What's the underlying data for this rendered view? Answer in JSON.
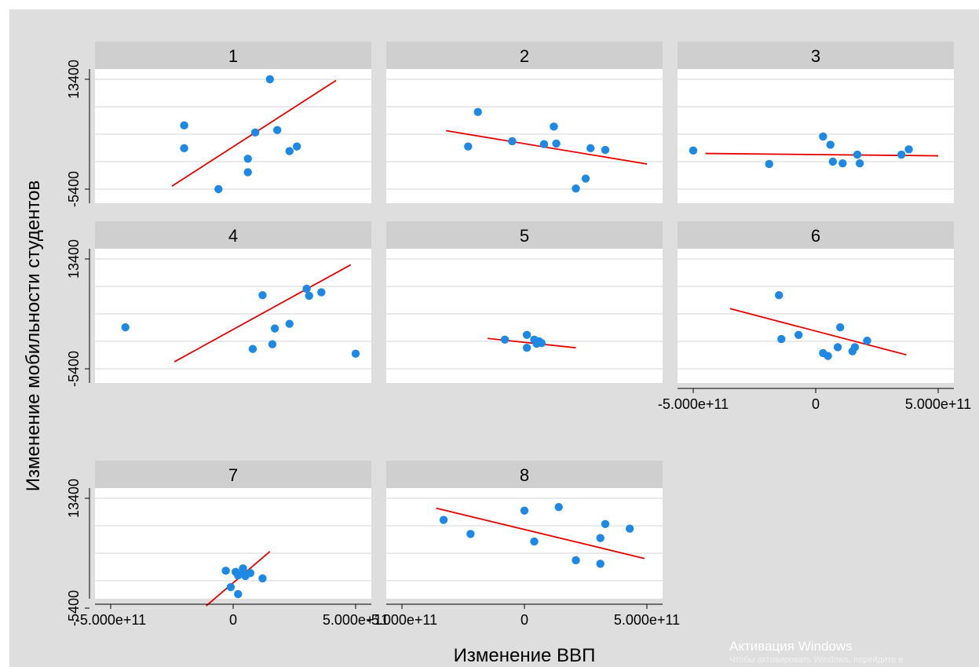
{
  "chart_data": {
    "type": "scatter",
    "ylabel": "Изменение мобильности студентов",
    "xlabel": "Изменение ВВП",
    "x_ticks": [
      -500000000000,
      0,
      500000000000
    ],
    "x_tick_labels": [
      "-5.000e+11",
      "0",
      "5.000e+11"
    ],
    "y_ticks": [
      -5400,
      13400
    ],
    "y_tick_labels": [
      "-5400",
      "13400"
    ],
    "xlim": [
      -600000000000,
      550000000000
    ],
    "ylim": [
      -7200,
      13700
    ],
    "point_color": "#1e88e5",
    "fit_color": "#e60000",
    "panels": [
      {
        "label": "1",
        "points": [
          [
            -200000000000.0,
            5500
          ],
          [
            -200000000000.0,
            1600
          ],
          [
            -60000000000.0,
            -5400
          ],
          [
            60000000000.0,
            -200
          ],
          [
            60000000000.0,
            -2500
          ],
          [
            90000000000.0,
            4300
          ],
          [
            150000000000.0,
            13400
          ],
          [
            180000000000.0,
            4700
          ],
          [
            230000000000.0,
            1100
          ],
          [
            260000000000.0,
            1900
          ]
        ],
        "fit": [
          [
            -250000000000.0,
            -4900
          ],
          [
            420000000000.0,
            13200
          ]
        ]
      },
      {
        "label": "2",
        "points": [
          [
            -230000000000.0,
            1900
          ],
          [
            -190000000000.0,
            7800
          ],
          [
            -50000000000.0,
            2800
          ],
          [
            80000000000.0,
            2300
          ],
          [
            120000000000.0,
            5300
          ],
          [
            130000000000.0,
            2400
          ],
          [
            210000000000.0,
            -5300
          ],
          [
            250000000000.0,
            -3600
          ],
          [
            270000000000.0,
            1600
          ],
          [
            330000000000.0,
            1300
          ]
        ],
        "fit": [
          [
            -320000000000.0,
            4600
          ],
          [
            500000000000.0,
            -1100
          ]
        ]
      },
      {
        "label": "3",
        "points": [
          [
            -500000000000.0,
            1200
          ],
          [
            -190000000000.0,
            -1100
          ],
          [
            30000000000.0,
            3600
          ],
          [
            60000000000.0,
            2200
          ],
          [
            70000000000.0,
            -700
          ],
          [
            110000000000.0,
            -1000
          ],
          [
            170000000000.0,
            500
          ],
          [
            180000000000.0,
            -1000
          ],
          [
            350000000000.0,
            500
          ],
          [
            380000000000.0,
            1400
          ]
        ],
        "fit": [
          [
            -450000000000.0,
            700
          ],
          [
            500000000000.0,
            300
          ]
        ]
      },
      {
        "label": "4",
        "points": [
          [
            -440000000000.0,
            1700
          ],
          [
            80000000000.0,
            -2000
          ],
          [
            120000000000.0,
            7200
          ],
          [
            160000000000.0,
            -1200
          ],
          [
            170000000000.0,
            1500
          ],
          [
            230000000000.0,
            2300
          ],
          [
            300000000000.0,
            8300
          ],
          [
            310000000000.0,
            7100
          ],
          [
            360000000000.0,
            7700
          ],
          [
            500000000000.0,
            -2800
          ]
        ],
        "fit": [
          [
            -240000000000.0,
            -4200
          ],
          [
            480000000000.0,
            12400
          ]
        ]
      },
      {
        "label": "5",
        "points": [
          [
            -80000000000.0,
            -400
          ],
          [
            10000000000.0,
            400
          ],
          [
            10000000000.0,
            -1800
          ],
          [
            40000000000.0,
            -400
          ],
          [
            50000000000.0,
            -1100
          ],
          [
            60000000000.0,
            -700
          ],
          [
            70000000000.0,
            -1000
          ]
        ],
        "fit": [
          [
            -150000000000.0,
            -200
          ],
          [
            210000000000.0,
            -1800
          ]
        ]
      },
      {
        "label": "6",
        "points": [
          [
            -150000000000.0,
            7200
          ],
          [
            -140000000000.0,
            -300
          ],
          [
            -70000000000.0,
            400
          ],
          [
            30000000000.0,
            -2700
          ],
          [
            50000000000.0,
            -3200
          ],
          [
            90000000000.0,
            -1700
          ],
          [
            100000000000.0,
            1700
          ],
          [
            150000000000.0,
            -2400
          ],
          [
            160000000000.0,
            -1700
          ],
          [
            210000000000.0,
            -600
          ]
        ],
        "fit": [
          [
            -350000000000.0,
            4900
          ],
          [
            370000000000.0,
            -3000
          ]
        ]
      },
      {
        "label": "7",
        "points": [
          [
            -30000000000.0,
            1000
          ],
          [
            -10000000000.0,
            -1800
          ],
          [
            10000000000.0,
            800
          ],
          [
            20000000000.0,
            -3000
          ],
          [
            20000000000.0,
            200
          ],
          [
            40000000000.0,
            600
          ],
          [
            40000000000.0,
            1400
          ],
          [
            50000000000.0,
            100
          ],
          [
            70000000000.0,
            600
          ],
          [
            120000000000.0,
            -300
          ]
        ],
        "fit": [
          [
            -110000000000.0,
            -5000
          ],
          [
            150000000000.0,
            4300
          ]
        ]
      },
      {
        "label": "8",
        "points": [
          [
            -330000000000.0,
            9700
          ],
          [
            -220000000000.0,
            7300
          ],
          [
            0,
            11300
          ],
          [
            40000000000.0,
            6000
          ],
          [
            140000000000.0,
            11900
          ],
          [
            210000000000.0,
            2800
          ],
          [
            310000000000.0,
            6600
          ],
          [
            310000000000.0,
            2200
          ],
          [
            330000000000.0,
            9000
          ],
          [
            430000000000.0,
            8200
          ]
        ],
        "fit": [
          [
            -360000000000.0,
            11700
          ],
          [
            490000000000.0,
            3100
          ]
        ]
      }
    ]
  },
  "watermark": {
    "title": "Активация Windows",
    "subtitle": "Чтобы активировать Windows, перейдите в"
  }
}
